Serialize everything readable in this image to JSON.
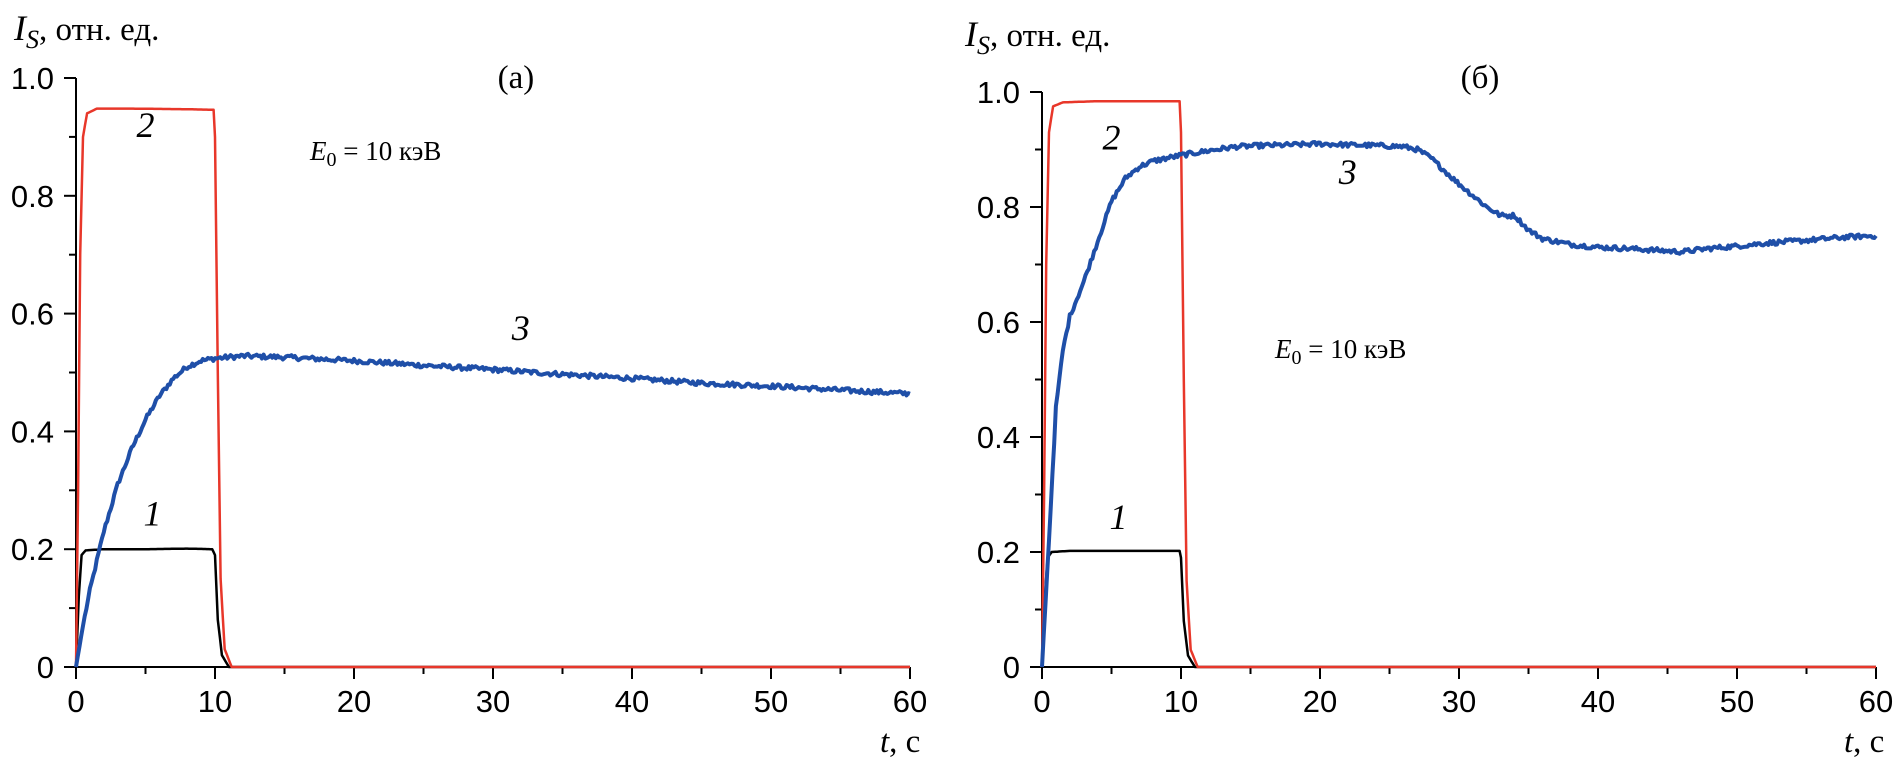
{
  "colors": {
    "series_1": "#000000",
    "series_2": "#e8372a",
    "series_3": "#1f4fa8"
  },
  "chart_data": [
    {
      "type": "line",
      "panel_label": "(а)",
      "ylabel_main": "I",
      "ylabel_sub": "S",
      "ylabel_rest": ", отн. ед.",
      "xlabel_main": "t",
      "xlabel_rest": ", с",
      "xlim": [
        0,
        60
      ],
      "ylim": [
        0,
        1.0
      ],
      "xticks": [
        "0",
        "10",
        "20",
        "30",
        "40",
        "50",
        "60"
      ],
      "yticks": [
        "0",
        "0.2",
        "0.4",
        "0.6",
        "0.8",
        "1.0"
      ],
      "annotation": {
        "var": "E",
        "sub": "0",
        "rest": " = 10 кэВ"
      },
      "series": [
        {
          "name": "1",
          "label_at": [
            5.5,
            0.24
          ],
          "points": [
            [
              0,
              0
            ],
            [
              0.2,
              0.12
            ],
            [
              0.4,
              0.19
            ],
            [
              0.7,
              0.198
            ],
            [
              2,
              0.2
            ],
            [
              5,
              0.2
            ],
            [
              8,
              0.201
            ],
            [
              9.8,
              0.2
            ],
            [
              10,
              0.19
            ],
            [
              10.2,
              0.08
            ],
            [
              10.5,
              0.02
            ],
            [
              11,
              0
            ],
            [
              60,
              0
            ]
          ]
        },
        {
          "name": "2",
          "label_at": [
            5,
            0.9
          ],
          "points": [
            [
              0,
              0
            ],
            [
              0.15,
              0.3
            ],
            [
              0.3,
              0.7
            ],
            [
              0.5,
              0.9
            ],
            [
              0.8,
              0.94
            ],
            [
              1.5,
              0.948
            ],
            [
              4,
              0.948
            ],
            [
              8,
              0.947
            ],
            [
              9.9,
              0.946
            ],
            [
              10,
              0.9
            ],
            [
              10.2,
              0.5
            ],
            [
              10.4,
              0.15
            ],
            [
              10.7,
              0.03
            ],
            [
              11.2,
              0
            ],
            [
              60,
              0
            ]
          ]
        },
        {
          "name": "3",
          "label_at": [
            32,
            0.555
          ],
          "points": [
            [
              0,
              0
            ],
            [
              0.5,
              0.07
            ],
            [
              1,
              0.13
            ],
            [
              2,
              0.23
            ],
            [
              3,
              0.31
            ],
            [
              4,
              0.37
            ],
            [
              5,
              0.42
            ],
            [
              6,
              0.46
            ],
            [
              7,
              0.49
            ],
            [
              8,
              0.51
            ],
            [
              9,
              0.52
            ],
            [
              10,
              0.524
            ],
            [
              12,
              0.528
            ],
            [
              15,
              0.526
            ],
            [
              20,
              0.52
            ],
            [
              25,
              0.512
            ],
            [
              30,
              0.505
            ],
            [
              35,
              0.497
            ],
            [
              40,
              0.49
            ],
            [
              45,
              0.482
            ],
            [
              50,
              0.477
            ],
            [
              55,
              0.47
            ],
            [
              60,
              0.464
            ]
          ]
        }
      ]
    },
    {
      "type": "line",
      "panel_label": "(б)",
      "ylabel_main": "I",
      "ylabel_sub": "S",
      "ylabel_rest": ", отн. ед.",
      "xlabel_main": "t",
      "xlabel_rest": ", с",
      "xlim": [
        0,
        60
      ],
      "ylim": [
        0,
        1.0
      ],
      "xticks": [
        "0",
        "10",
        "20",
        "30",
        "40",
        "50",
        "60"
      ],
      "yticks": [
        "0",
        "0.2",
        "0.4",
        "0.6",
        "0.8",
        "1.0"
      ],
      "annotation": {
        "var": "E",
        "sub": "0",
        "rest": " = 10 кэВ"
      },
      "series": [
        {
          "name": "1",
          "label_at": [
            5.5,
            0.24
          ],
          "points": [
            [
              0,
              0
            ],
            [
              0.2,
              0.12
            ],
            [
              0.4,
              0.19
            ],
            [
              0.7,
              0.2
            ],
            [
              2,
              0.202
            ],
            [
              5,
              0.202
            ],
            [
              8,
              0.202
            ],
            [
              9.9,
              0.202
            ],
            [
              10,
              0.19
            ],
            [
              10.2,
              0.08
            ],
            [
              10.5,
              0.02
            ],
            [
              11,
              0
            ],
            [
              60,
              0
            ]
          ]
        },
        {
          "name": "2",
          "label_at": [
            5,
            0.9
          ],
          "points": [
            [
              0,
              0
            ],
            [
              0.15,
              0.3
            ],
            [
              0.3,
              0.7
            ],
            [
              0.5,
              0.93
            ],
            [
              0.8,
              0.975
            ],
            [
              1.5,
              0.982
            ],
            [
              4,
              0.984
            ],
            [
              8,
              0.984
            ],
            [
              9.9,
              0.984
            ],
            [
              10,
              0.93
            ],
            [
              10.2,
              0.5
            ],
            [
              10.4,
              0.15
            ],
            [
              10.7,
              0.03
            ],
            [
              11.2,
              0
            ],
            [
              60,
              0
            ]
          ]
        },
        {
          "name": "3",
          "label_at": [
            22,
            0.84
          ],
          "points": [
            [
              0,
              0
            ],
            [
              0.5,
              0.22
            ],
            [
              1,
              0.45
            ],
            [
              1.5,
              0.55
            ],
            [
              2,
              0.61
            ],
            [
              3,
              0.67
            ],
            [
              4,
              0.74
            ],
            [
              5,
              0.81
            ],
            [
              6,
              0.85
            ],
            [
              7,
              0.87
            ],
            [
              8,
              0.88
            ],
            [
              9,
              0.885
            ],
            [
              10,
              0.89
            ],
            [
              12,
              0.898
            ],
            [
              14,
              0.905
            ],
            [
              16,
              0.907
            ],
            [
              18,
              0.908
            ],
            [
              20,
              0.91
            ],
            [
              22,
              0.908
            ],
            [
              24,
              0.907
            ],
            [
              26,
              0.905
            ],
            [
              27,
              0.9
            ],
            [
              28,
              0.885
            ],
            [
              29,
              0.862
            ],
            [
              30,
              0.84
            ],
            [
              31,
              0.82
            ],
            [
              32,
              0.8
            ],
            [
              33,
              0.785
            ],
            [
              34,
              0.785
            ],
            [
              35,
              0.76
            ],
            [
              36,
              0.745
            ],
            [
              38,
              0.735
            ],
            [
              40,
              0.73
            ],
            [
              42,
              0.728
            ],
            [
              44,
              0.725
            ],
            [
              46,
              0.722
            ],
            [
              48,
              0.728
            ],
            [
              50,
              0.732
            ],
            [
              52,
              0.737
            ],
            [
              55,
              0.742
            ],
            [
              58,
              0.748
            ],
            [
              60,
              0.75
            ]
          ]
        }
      ]
    }
  ]
}
